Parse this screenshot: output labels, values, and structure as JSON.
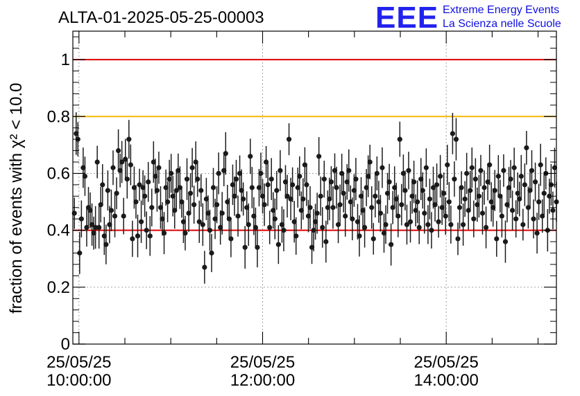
{
  "chart_data": {
    "type": "scatter",
    "title": "ALTA-01-2025-05-25-00003",
    "ylabel": "fraction of events with χ² < 10.0",
    "ylim": [
      0,
      1.1
    ],
    "yticks": [
      0,
      0.2,
      0.4,
      0.6,
      0.8,
      1
    ],
    "ytick_labels": [
      "0",
      "0.2",
      "0.4",
      "0.6",
      "0.8",
      "1"
    ],
    "xlim": [
      "25/05/25 09:56",
      "25/05/25 15:12"
    ],
    "xticks": [
      {
        "date": "25/05/25",
        "time": "10:00:00"
      },
      {
        "date": "25/05/25",
        "time": "12:00:00"
      },
      {
        "date": "25/05/25",
        "time": "14:00:00"
      }
    ],
    "grid": true,
    "reference_lines": [
      {
        "y": 1.0,
        "color": "#e00000"
      },
      {
        "y": 0.8,
        "color": "#f5b800"
      },
      {
        "y": 0.4,
        "color": "#e00000"
      }
    ],
    "series": [
      {
        "marker_color": "#1a1a1a",
        "x_start": "25/05/25 09:57",
        "x_end": "25/05/25 15:12",
        "y": [
          0.46,
          0.74,
          0.72,
          0.32,
          0.44,
          0.62,
          0.59,
          0.41,
          0.48,
          0.47,
          0.42,
          0.39,
          0.41,
          0.64,
          0.41,
          0.49,
          0.56,
          0.38,
          0.35,
          0.54,
          0.42,
          0.47,
          0.62,
          0.45,
          0.53,
          0.68,
          0.61,
          0.64,
          0.45,
          0.65,
          0.58,
          0.72,
          0.63,
          0.37,
          0.55,
          0.5,
          0.38,
          0.56,
          0.43,
          0.55,
          0.52,
          0.4,
          0.57,
          0.38,
          0.48,
          0.64,
          0.59,
          0.54,
          0.62,
          0.48,
          0.44,
          0.39,
          0.55,
          0.5,
          0.58,
          0.6,
          0.52,
          0.47,
          0.54,
          0.61,
          0.55,
          0.5,
          0.43,
          0.39,
          0.58,
          0.46,
          0.53,
          0.62,
          0.49,
          0.64,
          0.58,
          0.43,
          0.54,
          0.42,
          0.27,
          0.51,
          0.46,
          0.4,
          0.32,
          0.55,
          0.44,
          0.49,
          0.6,
          0.41,
          0.46,
          0.61,
          0.67,
          0.5,
          0.44,
          0.37,
          0.56,
          0.52,
          0.58,
          0.45,
          0.6,
          0.54,
          0.51,
          0.34,
          0.48,
          0.42,
          0.66,
          0.55,
          0.45,
          0.41,
          0.34,
          0.55,
          0.6,
          0.52,
          0.49,
          0.64,
          0.56,
          0.41,
          0.58,
          0.47,
          0.44,
          0.54,
          0.35,
          0.61,
          0.42,
          0.4,
          0.57,
          0.52,
          0.72,
          0.51,
          0.56,
          0.43,
          0.38,
          0.55,
          0.59,
          0.47,
          0.51,
          0.63,
          0.56,
          0.45,
          0.48,
          0.34,
          0.4,
          0.43,
          0.46,
          0.66,
          0.52,
          0.41,
          0.58,
          0.36,
          0.48,
          0.51,
          0.57,
          0.48,
          0.61,
          0.55,
          0.42,
          0.49,
          0.6,
          0.53,
          0.45,
          0.57,
          0.61,
          0.5,
          0.44,
          0.54,
          0.58,
          0.43,
          0.38,
          0.52,
          0.47,
          0.41,
          0.55,
          0.59,
          0.64,
          0.48,
          0.37,
          0.52,
          0.6,
          0.5,
          0.46,
          0.62,
          0.39,
          0.42,
          0.53,
          0.57,
          0.35,
          0.48,
          0.55,
          0.51,
          0.45,
          0.72,
          0.49,
          0.6,
          0.54,
          0.42,
          0.61,
          0.43,
          0.52,
          0.57,
          0.47,
          0.5,
          0.41,
          0.58,
          0.54,
          0.46,
          0.62,
          0.42,
          0.51,
          0.4,
          0.55,
          0.49,
          0.56,
          0.43,
          0.59,
          0.48,
          0.53,
          0.45,
          0.63,
          0.5,
          0.42,
          0.74,
          0.58,
          0.72,
          0.37,
          0.48,
          0.55,
          0.42,
          0.51,
          0.6,
          0.47,
          0.54,
          0.62,
          0.44,
          0.58,
          0.49,
          0.52,
          0.61,
          0.46,
          0.55,
          0.41,
          0.57,
          0.63,
          0.5,
          0.48,
          0.54,
          0.37,
          0.59,
          0.52,
          0.45,
          0.61,
          0.36,
          0.49,
          0.55,
          0.58,
          0.47,
          0.62,
          0.44,
          0.53,
          0.51,
          0.59,
          0.42,
          0.56,
          0.69,
          0.48,
          0.54,
          0.61,
          0.44,
          0.57,
          0.39,
          0.5,
          0.63,
          0.45,
          0.53,
          0.6,
          0.4,
          0.52,
          0.56,
          0.47,
          0.62,
          0.5
        ]
      }
    ]
  },
  "logo": {
    "mark": "EEE",
    "line1": "Extreme Energy Events",
    "line2": "La Scienza nelle Scuole"
  }
}
